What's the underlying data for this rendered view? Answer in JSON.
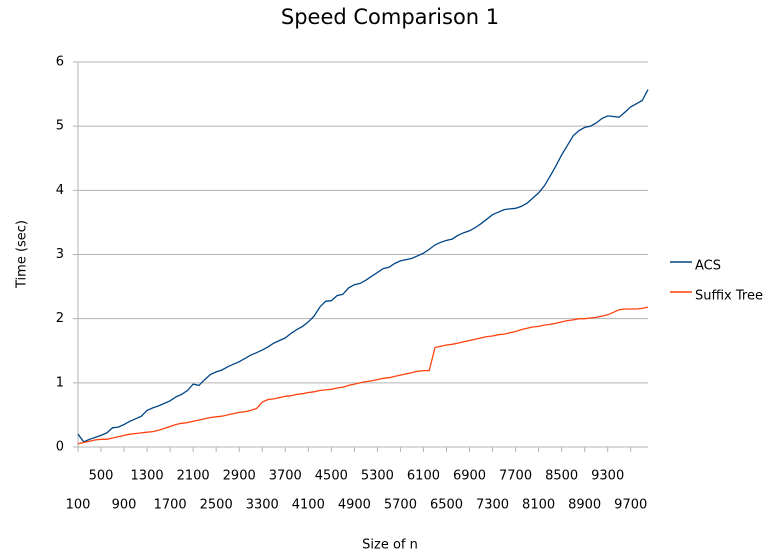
{
  "chart_data": {
    "type": "line",
    "title": "Speed Comparison 1",
    "x_label": "Size of n",
    "y_label": "Time (sec)",
    "x": [
      100,
      200,
      300,
      400,
      500,
      600,
      700,
      800,
      900,
      1000,
      1100,
      1200,
      1300,
      1400,
      1500,
      1600,
      1700,
      1800,
      1900,
      2000,
      2100,
      2200,
      2300,
      2400,
      2500,
      2600,
      2700,
      2800,
      2900,
      3000,
      3100,
      3200,
      3300,
      3400,
      3500,
      3600,
      3700,
      3800,
      3900,
      4000,
      4100,
      4200,
      4300,
      4400,
      4500,
      4600,
      4700,
      4800,
      4900,
      5000,
      5100,
      5200,
      5300,
      5400,
      5500,
      5600,
      5700,
      5800,
      5900,
      6000,
      6100,
      6200,
      6300,
      6400,
      6500,
      6600,
      6700,
      6800,
      6900,
      7000,
      7100,
      7200,
      7300,
      7400,
      7500,
      7600,
      7700,
      7800,
      7900,
      8000,
      8100,
      8200,
      8300,
      8400,
      8500,
      8600,
      8700,
      8800,
      8900,
      9000,
      9100,
      9200,
      9300,
      9400,
      9500,
      9600,
      9700,
      9800,
      9900,
      10000
    ],
    "series": [
      {
        "name": "ACS",
        "color": "#004586",
        "values": [
          0.2,
          0.08,
          0.12,
          0.15,
          0.18,
          0.22,
          0.3,
          0.31,
          0.35,
          0.4,
          0.44,
          0.48,
          0.57,
          0.61,
          0.64,
          0.68,
          0.72,
          0.78,
          0.82,
          0.88,
          0.98,
          0.96,
          1.05,
          1.13,
          1.17,
          1.2,
          1.25,
          1.29,
          1.33,
          1.38,
          1.43,
          1.47,
          1.51,
          1.56,
          1.62,
          1.66,
          1.7,
          1.77,
          1.83,
          1.88,
          1.95,
          2.04,
          2.18,
          2.27,
          2.28,
          2.36,
          2.38,
          2.48,
          2.53,
          2.55,
          2.6,
          2.66,
          2.72,
          2.78,
          2.8,
          2.86,
          2.9,
          2.92,
          2.94,
          2.98,
          3.02,
          3.08,
          3.15,
          3.19,
          3.22,
          3.24,
          3.3,
          3.34,
          3.37,
          3.42,
          3.48,
          3.55,
          3.62,
          3.66,
          3.7,
          3.71,
          3.72,
          3.75,
          3.8,
          3.88,
          3.96,
          4.07,
          4.22,
          4.38,
          4.55,
          4.7,
          4.85,
          4.93,
          4.98,
          5.0,
          5.05,
          5.12,
          5.16,
          5.15,
          5.14,
          5.22,
          5.3,
          5.35,
          5.4,
          5.57
        ]
      },
      {
        "name": "Suffix Tree",
        "color": "#ff420e",
        "values": [
          0.05,
          0.07,
          0.09,
          0.11,
          0.12,
          0.12,
          0.14,
          0.16,
          0.18,
          0.2,
          0.21,
          0.22,
          0.23,
          0.24,
          0.26,
          0.29,
          0.32,
          0.35,
          0.37,
          0.38,
          0.4,
          0.42,
          0.44,
          0.46,
          0.47,
          0.48,
          0.5,
          0.52,
          0.54,
          0.55,
          0.57,
          0.6,
          0.7,
          0.74,
          0.75,
          0.77,
          0.79,
          0.8,
          0.82,
          0.83,
          0.85,
          0.86,
          0.88,
          0.89,
          0.9,
          0.92,
          0.93,
          0.96,
          0.98,
          1.0,
          1.02,
          1.03,
          1.05,
          1.07,
          1.08,
          1.1,
          1.12,
          1.14,
          1.16,
          1.18,
          1.19,
          1.19,
          1.55,
          1.57,
          1.59,
          1.6,
          1.62,
          1.64,
          1.66,
          1.68,
          1.7,
          1.72,
          1.73,
          1.75,
          1.76,
          1.78,
          1.8,
          1.83,
          1.85,
          1.87,
          1.88,
          1.9,
          1.91,
          1.93,
          1.95,
          1.97,
          1.98,
          2.0,
          2.0,
          2.01,
          2.02,
          2.04,
          2.06,
          2.1,
          2.14,
          2.15,
          2.15,
          2.15,
          2.16,
          2.18
        ]
      }
    ],
    "xlim": [
      100,
      10000
    ],
    "xticks": [
      100,
      500,
      900,
      1300,
      1700,
      2100,
      2500,
      2900,
      3300,
      3700,
      4100,
      4500,
      4900,
      5300,
      5700,
      6100,
      6500,
      6900,
      7300,
      7700,
      8100,
      8500,
      8900,
      9300,
      9700
    ],
    "ylim": [
      0,
      6
    ],
    "yticks": [
      0,
      1,
      2,
      3,
      4,
      5,
      6
    ],
    "grid": true,
    "legend": "right"
  }
}
